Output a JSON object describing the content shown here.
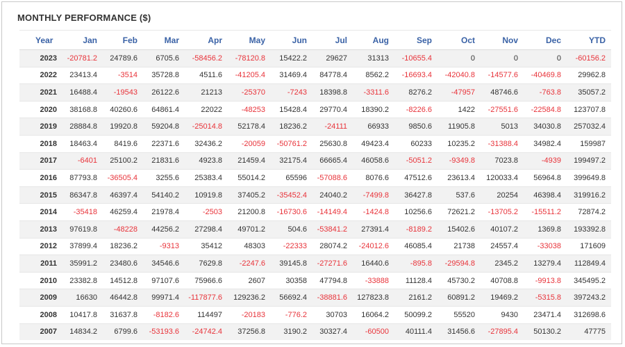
{
  "title": "MONTHLY PERFORMANCE ($)",
  "colors": {
    "negative": "#e8333a",
    "header": "#3a62a6",
    "text": "#333333"
  },
  "columns": [
    "Year",
    "Jan",
    "Feb",
    "Mar",
    "Apr",
    "May",
    "Jun",
    "Jul",
    "Aug",
    "Sep",
    "Oct",
    "Nov",
    "Dec",
    "YTD"
  ],
  "rows": [
    [
      "2023",
      "-20781.2",
      "24789.6",
      "6705.6",
      "-58456.2",
      "-78120.8",
      "15422.2",
      "29627",
      "31313",
      "-10655.4",
      "0",
      "0",
      "0",
      "-60156.2"
    ],
    [
      "2022",
      "23413.4",
      "-3514",
      "35728.8",
      "4511.6",
      "-41205.4",
      "31469.4",
      "84778.4",
      "8562.2",
      "-16693.4",
      "-42040.8",
      "-14577.6",
      "-40469.8",
      "29962.8"
    ],
    [
      "2021",
      "16488.4",
      "-19543",
      "26122.6",
      "21213",
      "-25370",
      "-7243",
      "18398.8",
      "-3311.6",
      "8276.2",
      "-47957",
      "48746.6",
      "-763.8",
      "35057.2"
    ],
    [
      "2020",
      "38168.8",
      "40260.6",
      "64861.4",
      "22022",
      "-48253",
      "15428.4",
      "29770.4",
      "18390.2",
      "-8226.6",
      "1422",
      "-27551.6",
      "-22584.8",
      "123707.8"
    ],
    [
      "2019",
      "28884.8",
      "19920.8",
      "59204.8",
      "-25014.8",
      "52178.4",
      "18236.2",
      "-24111",
      "66933",
      "9850.6",
      "11905.8",
      "5013",
      "34030.8",
      "257032.4"
    ],
    [
      "2018",
      "18463.4",
      "8419.6",
      "22371.6",
      "32436.2",
      "-20059",
      "-50761.2",
      "25630.8",
      "49423.4",
      "60233",
      "10235.2",
      "-31388.4",
      "34982.4",
      "159987"
    ],
    [
      "2017",
      "-6401",
      "25100.2",
      "21831.6",
      "4923.8",
      "21459.4",
      "32175.4",
      "66665.4",
      "46058.6",
      "-5051.2",
      "-9349.8",
      "7023.8",
      "-4939",
      "199497.2"
    ],
    [
      "2016",
      "87793.8",
      "-36505.4",
      "3255.6",
      "25383.4",
      "55014.2",
      "65596",
      "-57088.6",
      "8076.6",
      "47512.6",
      "23613.4",
      "120033.4",
      "56964.8",
      "399649.8"
    ],
    [
      "2015",
      "86347.8",
      "46397.4",
      "54140.2",
      "10919.8",
      "37405.2",
      "-35452.4",
      "24040.2",
      "-7499.8",
      "36427.8",
      "537.6",
      "20254",
      "46398.4",
      "319916.2"
    ],
    [
      "2014",
      "-35418",
      "46259.4",
      "21978.4",
      "-2503",
      "21200.8",
      "-16730.6",
      "-14149.4",
      "-1424.8",
      "10256.6",
      "72621.2",
      "-13705.2",
      "-15511.2",
      "72874.2"
    ],
    [
      "2013",
      "97619.8",
      "-48228",
      "44256.2",
      "27298.4",
      "49701.2",
      "504.6",
      "-53841.2",
      "27391.4",
      "-8189.2",
      "15402.6",
      "40107.2",
      "1369.8",
      "193392.8"
    ],
    [
      "2012",
      "37899.4",
      "18236.2",
      "-9313",
      "35412",
      "48303",
      "-22333",
      "28074.2",
      "-24012.6",
      "46085.4",
      "21738",
      "24557.4",
      "-33038",
      "171609"
    ],
    [
      "2011",
      "35991.2",
      "23480.6",
      "34546.6",
      "7629.8",
      "-2247.6",
      "39145.8",
      "-27271.6",
      "16440.6",
      "-895.8",
      "-29594.8",
      "2345.2",
      "13279.4",
      "112849.4"
    ],
    [
      "2010",
      "23382.8",
      "14512.8",
      "97107.6",
      "75966.6",
      "2607",
      "30358",
      "47794.8",
      "-33888",
      "11128.4",
      "45730.2",
      "40708.8",
      "-9913.8",
      "345495.2"
    ],
    [
      "2009",
      "16630",
      "46442.8",
      "99971.4",
      "-117877.6",
      "129236.2",
      "56692.4",
      "-38881.6",
      "127823.8",
      "2161.2",
      "60891.2",
      "19469.2",
      "-5315.8",
      "397243.2"
    ],
    [
      "2008",
      "10417.8",
      "31637.8",
      "-8182.6",
      "114497",
      "-20183",
      "-776.2",
      "30703",
      "16064.2",
      "50099.2",
      "55520",
      "9430",
      "23471.4",
      "312698.6"
    ],
    [
      "2007",
      "14834.2",
      "6799.6",
      "-53193.6",
      "-24742.4",
      "37256.8",
      "3190.2",
      "30327.4",
      "-60500",
      "40111.4",
      "31456.6",
      "-27895.4",
      "50130.2",
      "47775"
    ]
  ]
}
